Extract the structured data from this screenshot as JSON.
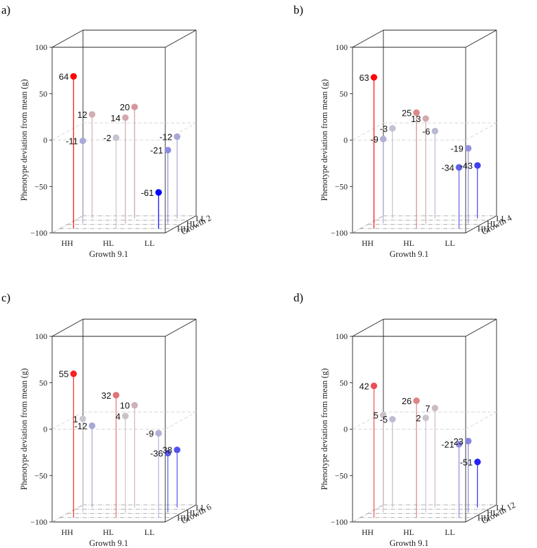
{
  "colors": {
    "high": "#ff0000",
    "mid": "#c9c9cf",
    "low": "#0000ff",
    "box": "#222222",
    "floor": "#999999",
    "zero_plane": "#d9d9d9"
  },
  "axes": {
    "ylabel": "Phenotype deviation from mean (g)",
    "xlabel": "Growth 9.1",
    "yticks": [
      "100",
      "50",
      "0",
      "−50",
      "−100"
    ],
    "xticks": [
      "HH",
      "HL",
      "LL"
    ],
    "dticks": [
      "LL",
      "HL",
      "HH"
    ]
  },
  "chart_data": [
    {
      "type": "scatter",
      "panel_label": "a)",
      "zlabel": "Growth 2",
      "ylim": [
        -100,
        100
      ],
      "points": [
        {
          "x": "HH",
          "z": "HH",
          "y": 64,
          "label": "64"
        },
        {
          "x": "HH",
          "z": "HL",
          "y": -11,
          "label": "-11"
        },
        {
          "x": "HH",
          "z": "LL",
          "y": 12,
          "label": "12"
        },
        {
          "x": "HL",
          "z": "HH",
          "y": -2,
          "label": "-2"
        },
        {
          "x": "HL",
          "z": "HL",
          "y": 14,
          "label": "14"
        },
        {
          "x": "HL",
          "z": "LL",
          "y": 20,
          "label": "20"
        },
        {
          "x": "LL",
          "z": "HH",
          "y": -61,
          "label": "-61"
        },
        {
          "x": "LL",
          "z": "HL",
          "y": -21,
          "label": "-21"
        },
        {
          "x": "LL",
          "z": "LL",
          "y": -12,
          "label": "-12"
        }
      ]
    },
    {
      "type": "scatter",
      "panel_label": "b)",
      "zlabel": "Growth 4",
      "ylim": [
        -100,
        100
      ],
      "points": [
        {
          "x": "HH",
          "z": "HH",
          "y": 63,
          "label": "63"
        },
        {
          "x": "HH",
          "z": "HL",
          "y": -9,
          "label": "-9"
        },
        {
          "x": "HH",
          "z": "LL",
          "y": -3,
          "label": "-3"
        },
        {
          "x": "HL",
          "z": "HH",
          "y": 25,
          "label": "25"
        },
        {
          "x": "HL",
          "z": "HL",
          "y": 13,
          "label": "13"
        },
        {
          "x": "HL",
          "z": "LL",
          "y": -6,
          "label": "-6"
        },
        {
          "x": "LL",
          "z": "HH",
          "y": -34,
          "label": "-34"
        },
        {
          "x": "LL",
          "z": "HL",
          "y": -19,
          "label": "-19"
        },
        {
          "x": "LL",
          "z": "LL",
          "y": -43,
          "label": "-43"
        }
      ]
    },
    {
      "type": "scatter",
      "panel_label": "c)",
      "zlabel": "Growth 6",
      "ylim": [
        -100,
        100
      ],
      "points": [
        {
          "x": "HH",
          "z": "HH",
          "y": 55,
          "label": "55"
        },
        {
          "x": "HH",
          "z": "HL",
          "y": 1,
          "label": "1"
        },
        {
          "x": "HH",
          "z": "LL",
          "y": -12,
          "label": "-12"
        },
        {
          "x": "HL",
          "z": "HH",
          "y": 32,
          "label": "32"
        },
        {
          "x": "HL",
          "z": "HL",
          "y": 4,
          "label": "4"
        },
        {
          "x": "HL",
          "z": "LL",
          "y": 10,
          "label": "10"
        },
        {
          "x": "LL",
          "z": "HH",
          "y": -9,
          "label": "-9"
        },
        {
          "x": "LL",
          "z": "HL",
          "y": -36,
          "label": "-36"
        },
        {
          "x": "LL",
          "z": "LL",
          "y": -38,
          "label": "-38"
        }
      ]
    },
    {
      "type": "scatter",
      "panel_label": "d)",
      "zlabel": "Growth 12",
      "ylim": [
        -100,
        100
      ],
      "points": [
        {
          "x": "HH",
          "z": "HH",
          "y": 42,
          "label": "42"
        },
        {
          "x": "HH",
          "z": "HL",
          "y": 5,
          "label": "5"
        },
        {
          "x": "HH",
          "z": "LL",
          "y": -5,
          "label": "-5"
        },
        {
          "x": "HL",
          "z": "HH",
          "y": 26,
          "label": "26"
        },
        {
          "x": "HL",
          "z": "HL",
          "y": 2,
          "label": "2"
        },
        {
          "x": "HL",
          "z": "LL",
          "y": 7,
          "label": "7"
        },
        {
          "x": "LL",
          "z": "HH",
          "y": -21,
          "label": "-21"
        },
        {
          "x": "LL",
          "z": "HL",
          "y": -23,
          "label": "-23"
        },
        {
          "x": "LL",
          "z": "LL",
          "y": -51,
          "label": "-51"
        }
      ]
    }
  ]
}
